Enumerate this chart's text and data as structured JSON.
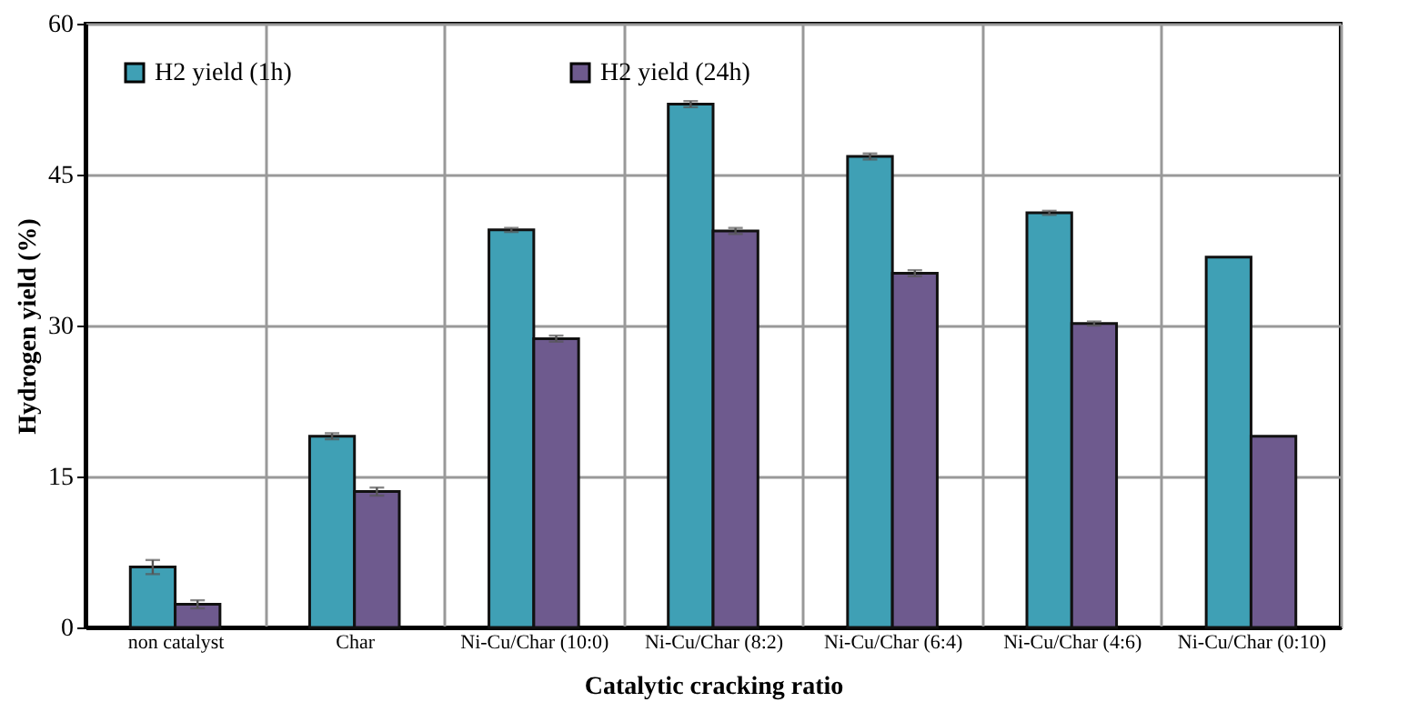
{
  "chart_data": {
    "type": "bar",
    "xlabel": "Catalytic cracking ratio",
    "ylabel": "Hydrogen yield (%)",
    "categories": [
      "non catalyst",
      "Char",
      "Ni-Cu/Char (10:0)",
      "Ni-Cu/Char (8:2)",
      "Ni-Cu/Char (6:4)",
      "Ni-Cu/Char (4:6)",
      "Ni-Cu/Char (0:10)"
    ],
    "series": [
      {
        "name": "H2 yield (1h)",
        "color": "#3fa0b5",
        "values": [
          6.0,
          19.0,
          39.5,
          52.0,
          46.8,
          41.2,
          36.8
        ],
        "errors": [
          0.7,
          0.3,
          0.2,
          0.3,
          0.3,
          0.2,
          null
        ]
      },
      {
        "name": "H2 yield (24h)",
        "color": "#6e5a8e",
        "values": [
          2.3,
          13.5,
          28.7,
          39.4,
          35.2,
          30.2,
          19.0
        ],
        "errors": [
          0.4,
          0.4,
          0.3,
          0.3,
          0.3,
          0.2,
          null
        ]
      }
    ],
    "ylim": [
      0,
      60
    ],
    "yticks": [
      0,
      15,
      30,
      45,
      60
    ],
    "grid": true,
    "legend": "top left"
  }
}
